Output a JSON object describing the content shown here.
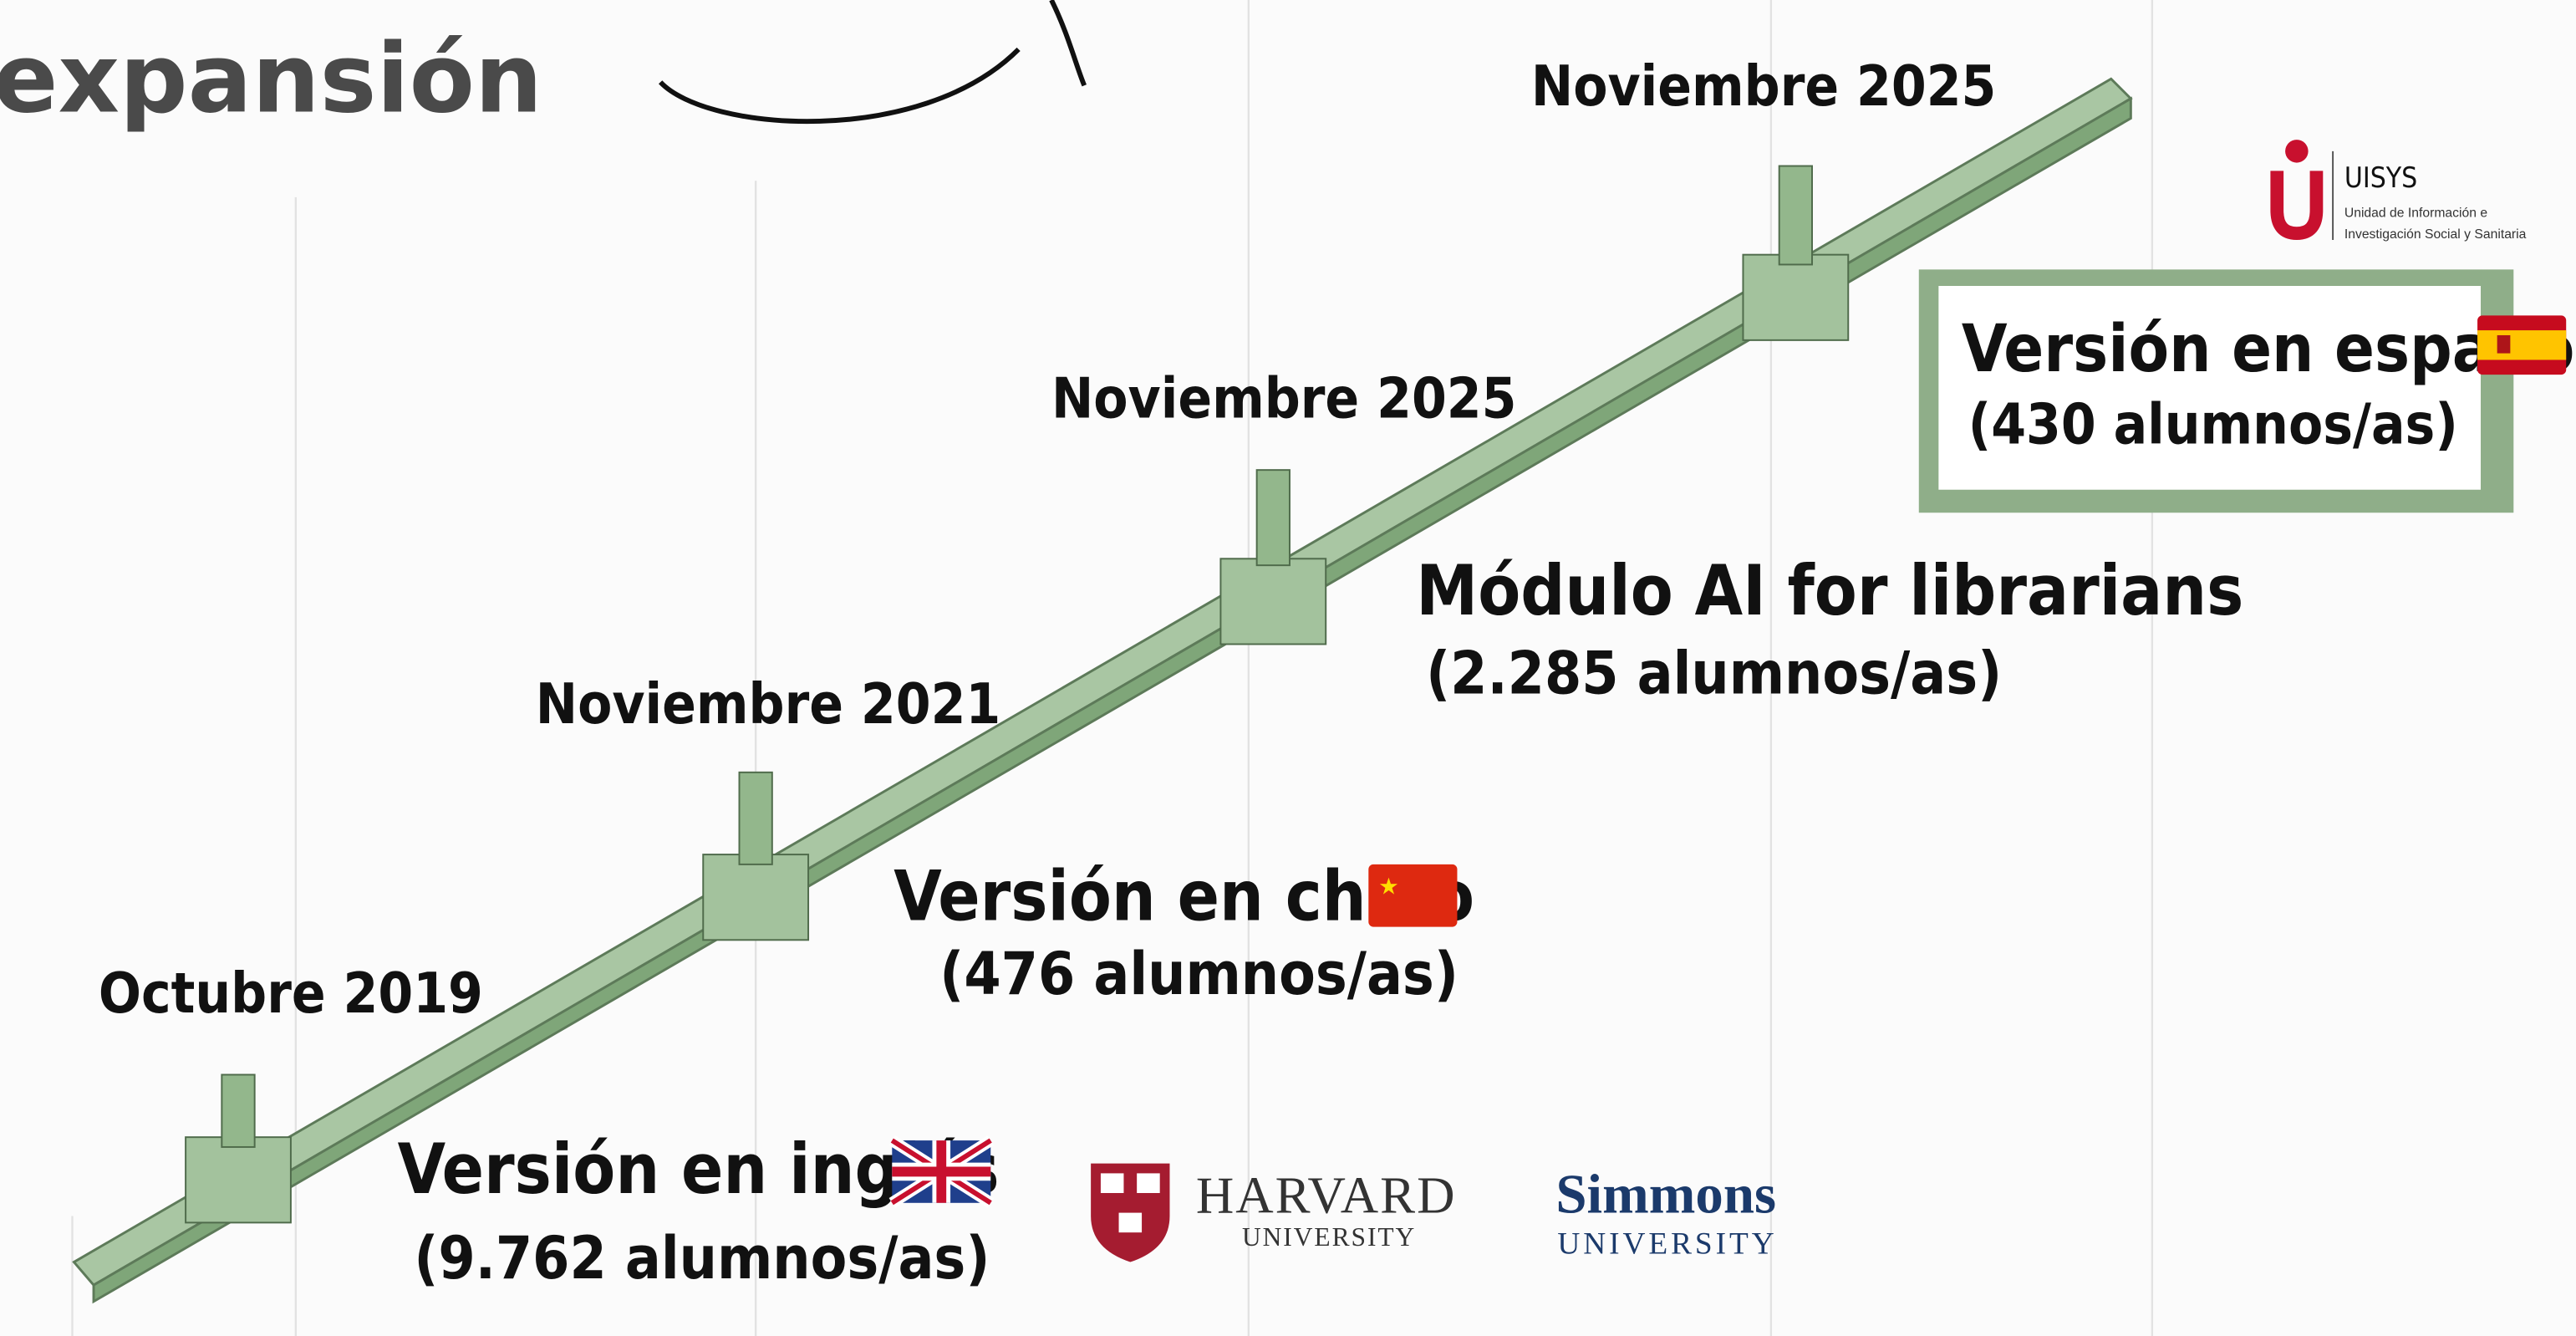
{
  "header": {
    "title": "expansión"
  },
  "milestones": [
    {
      "date": "Octubre 2019",
      "label": "Versión en inglés",
      "students": "(9.762 alumnos/as)"
    },
    {
      "date": "Noviembre 2021",
      "label": "Versión en chino",
      "students": "(476 alumnos/as)"
    },
    {
      "date": "Noviembre 2025",
      "label": "Módulo AI for librarians",
      "students": "(2.285 alumnos/as)"
    },
    {
      "date": "Noviembre 2025",
      "label": "Versión en español",
      "students": "(430 alumnos/as)"
    }
  ],
  "logos": {
    "harvard": {
      "name": "HARVARD",
      "sub": "UNIVERSITY"
    },
    "simmons": {
      "name": "Simmons",
      "sub": "UNIVERSITY"
    },
    "uisys": {
      "name": "UISYS",
      "line1": "Unidad de Información e",
      "line2": "Investigación Social y Sanitaria"
    }
  }
}
